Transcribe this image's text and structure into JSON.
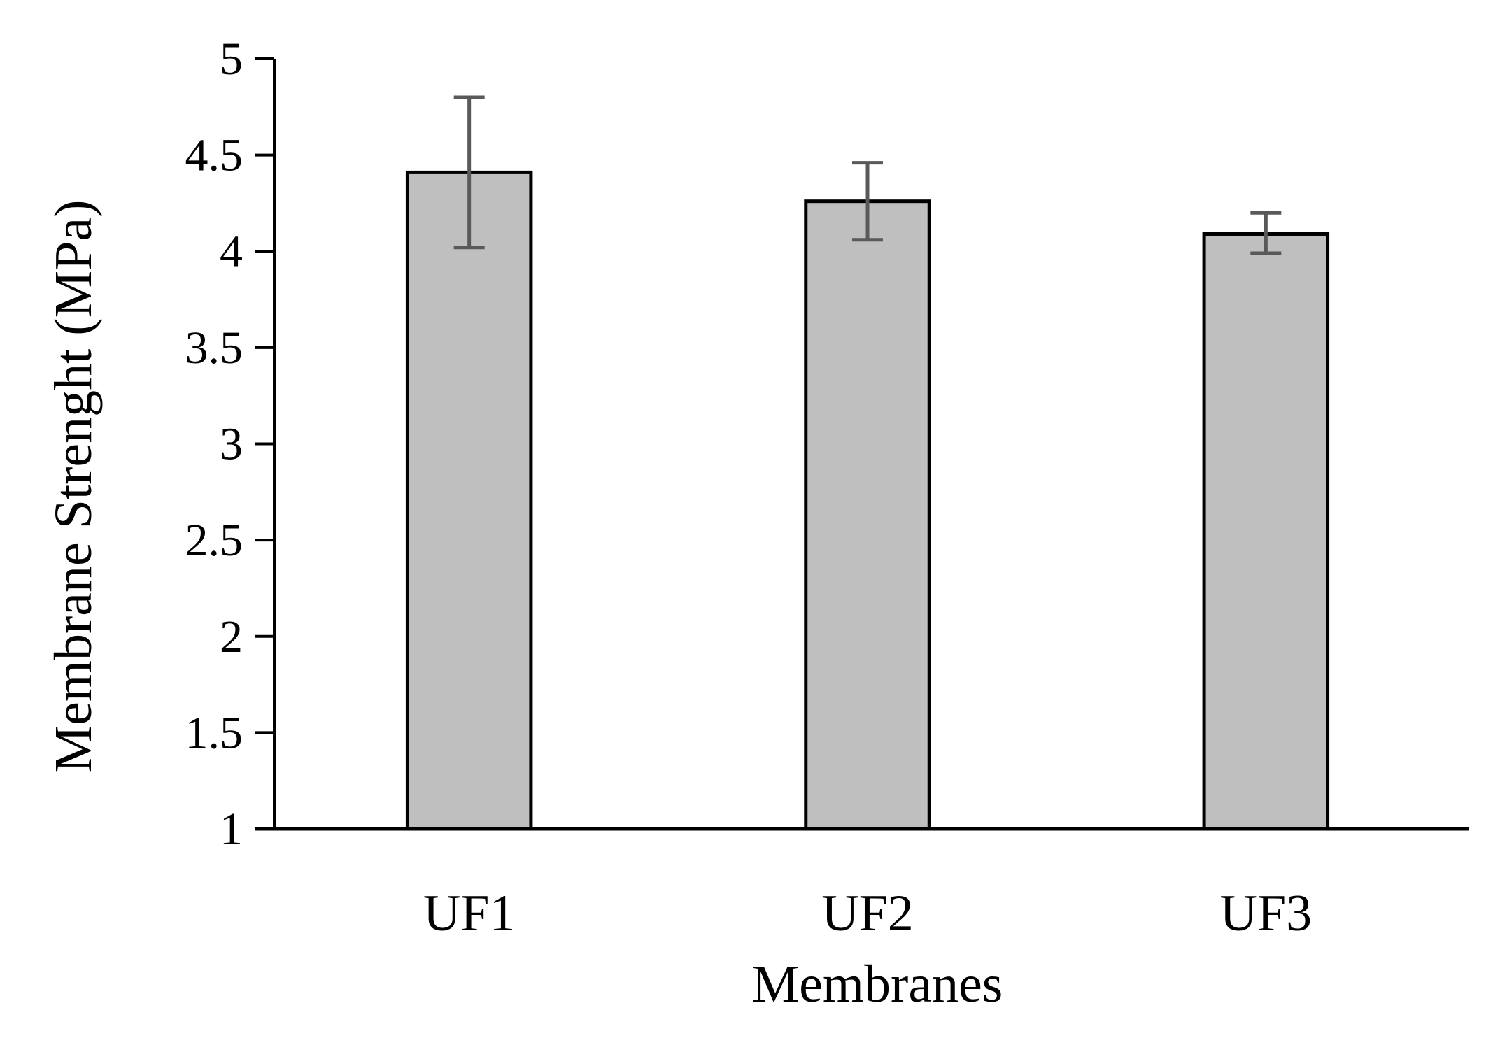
{
  "chart_data": {
    "type": "bar",
    "title": "",
    "xlabel": "Membranes",
    "ylabel": "Membrane Strenght (MPa)",
    "ylim": [
      1,
      5
    ],
    "yticks": [
      {
        "value": 1,
        "label": "1"
      },
      {
        "value": 1.5,
        "label": "1.5"
      },
      {
        "value": 2,
        "label": "2"
      },
      {
        "value": 2.5,
        "label": "2.5"
      },
      {
        "value": 3,
        "label": "3"
      },
      {
        "value": 3.5,
        "label": "3.5"
      },
      {
        "value": 4,
        "label": "4"
      },
      {
        "value": 4.5,
        "label": "4.5"
      },
      {
        "value": 5,
        "label": "5"
      }
    ],
    "categories": [
      "UF1",
      "UF2",
      "UF3"
    ],
    "values": [
      4.41,
      4.26,
      4.09
    ],
    "error_low": [
      4.02,
      4.06,
      3.99
    ],
    "error_high": [
      4.8,
      4.46,
      4.2
    ],
    "grid": false,
    "legend": "none",
    "colors": {
      "bar_fill": "#bfbfbf",
      "bar_stroke": "#000000",
      "error_bar": "#595959",
      "axis": "#000000"
    }
  }
}
